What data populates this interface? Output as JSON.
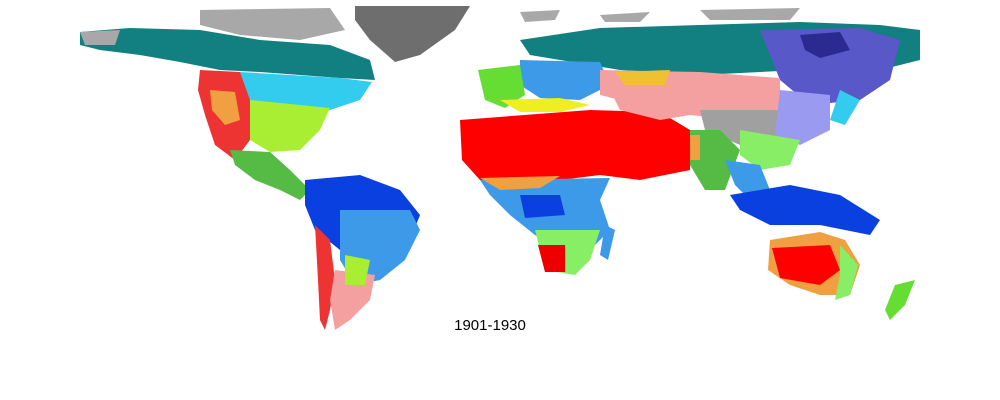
{
  "map": {
    "caption": "1901-1930"
  }
}
